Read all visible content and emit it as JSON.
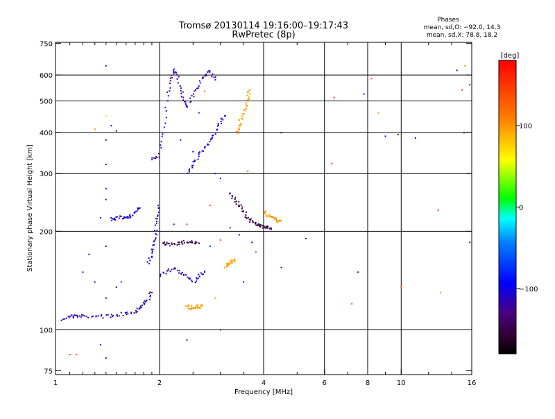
{
  "chart_data": {
    "type": "scatter",
    "title": "Tromsø 20130114 19:16:00–19:17:43",
    "subtitle": "RwPretec (8p)",
    "info": {
      "heading": "Phases",
      "line1": "mean, sd,O: −92.0, 14.3",
      "line2": "mean, sd,X: 78.8, 18.2"
    },
    "xlabel": "Frequency [MHz]",
    "ylabel": "Stationary phase Virtual Height [km]",
    "x_scale": "log2",
    "y_scale": "log",
    "xlim": [
      1,
      16
    ],
    "ylim": [
      73,
      755
    ],
    "x_ticks": [
      {
        "value": 1,
        "label": "1"
      },
      {
        "value": 2,
        "label": "2"
      },
      {
        "value": 4,
        "label": "4"
      },
      {
        "value": 6,
        "label": "6"
      },
      {
        "value": 8,
        "label": "8"
      },
      {
        "value": 10,
        "label": "10"
      },
      {
        "value": 16,
        "label": "16"
      }
    ],
    "x_minor_ticks": [
      1.1,
      1.2,
      1.3,
      1.4,
      1.5,
      1.6,
      1.7,
      1.8,
      1.9,
      2.5,
      3,
      3.5,
      5,
      7,
      9,
      12,
      14
    ],
    "x_gridlines": [
      2,
      4,
      6,
      8,
      10
    ],
    "y_ticks": [
      {
        "value": 75,
        "label": "75"
      },
      {
        "value": 100,
        "label": "100"
      },
      {
        "value": 200,
        "label": "200"
      },
      {
        "value": 300,
        "label": "300"
      },
      {
        "value": 400,
        "label": "400"
      },
      {
        "value": 500,
        "label": "500"
      },
      {
        "value": 600,
        "label": "600"
      },
      {
        "value": 750,
        "label": "750"
      }
    ],
    "y_gridlines": [
      100,
      200,
      300,
      400,
      500,
      600
    ],
    "colorbar": {
      "label": "[deg]",
      "range": [
        -180,
        180
      ],
      "ticks": [
        {
          "value": 100,
          "label": "100"
        },
        {
          "value": 0,
          "label": "0"
        },
        {
          "value": -100,
          "label": "−100"
        }
      ]
    },
    "traces": [
      {
        "name": "",
        "phase": -115,
        "points": [
          [
            1.05,
            108
          ],
          [
            1.1,
            110
          ],
          [
            1.15,
            110
          ],
          [
            1.2,
            110
          ],
          [
            1.3,
            110
          ],
          [
            1.4,
            110
          ],
          [
            1.5,
            111
          ],
          [
            1.6,
            112
          ],
          [
            1.7,
            114
          ],
          [
            1.75,
            117
          ],
          [
            1.8,
            120
          ],
          [
            1.85,
            124
          ],
          [
            1.9,
            130
          ]
        ]
      },
      {
        "name": "",
        "phase": -105,
        "points": [
          [
            1.45,
            218
          ],
          [
            1.5,
            219
          ],
          [
            1.55,
            220
          ],
          [
            1.6,
            221
          ],
          [
            1.65,
            223
          ],
          [
            1.7,
            228
          ],
          [
            1.75,
            235
          ]
        ]
      },
      {
        "name": "",
        "phase": -110,
        "points": [
          [
            1.85,
            160
          ],
          [
            1.9,
            170
          ],
          [
            1.92,
            185
          ],
          [
            1.95,
            200
          ],
          [
            1.97,
            220
          ],
          [
            1.98,
            240
          ]
        ]
      },
      {
        "name": "",
        "phase": -115,
        "points": [
          [
            1.9,
            330
          ],
          [
            2.0,
            340
          ],
          [
            2.05,
            400
          ],
          [
            2.1,
            500
          ],
          [
            2.15,
            580
          ],
          [
            2.2,
            620
          ],
          [
            2.25,
            600
          ],
          [
            2.3,
            540
          ],
          [
            2.35,
            500
          ],
          [
            2.4,
            480
          ],
          [
            2.5,
            520
          ],
          [
            2.6,
            560
          ],
          [
            2.7,
            600
          ],
          [
            2.8,
            620
          ],
          [
            2.9,
            580
          ]
        ]
      },
      {
        "name": "",
        "phase": -100,
        "points": [
          [
            2.4,
            300
          ],
          [
            2.5,
            320
          ],
          [
            2.6,
            340
          ],
          [
            2.7,
            360
          ],
          [
            2.8,
            380
          ],
          [
            2.9,
            400
          ],
          [
            3.0,
            430
          ],
          [
            3.1,
            450
          ]
        ]
      },
      {
        "name": "",
        "phase": -110,
        "points": [
          [
            2.0,
            145
          ],
          [
            2.1,
            150
          ],
          [
            2.2,
            155
          ],
          [
            2.3,
            150
          ],
          [
            2.4,
            145
          ],
          [
            2.5,
            140
          ],
          [
            2.6,
            145
          ],
          [
            2.7,
            150
          ]
        ]
      },
      {
        "name": "",
        "phase": -150,
        "points": [
          [
            2.05,
            185
          ],
          [
            2.1,
            183
          ],
          [
            2.2,
            182
          ],
          [
            2.3,
            184
          ],
          [
            2.4,
            186
          ],
          [
            2.5,
            185
          ],
          [
            2.6,
            184
          ]
        ]
      },
      {
        "name": "",
        "phase": 95,
        "points": [
          [
            2.4,
            118
          ],
          [
            2.45,
            117
          ],
          [
            2.5,
            117
          ],
          [
            2.55,
            117
          ],
          [
            2.6,
            118
          ],
          [
            2.65,
            118
          ]
        ]
      },
      {
        "name": "",
        "phase": 95,
        "points": [
          [
            3.1,
            155
          ],
          [
            3.15,
            158
          ],
          [
            3.2,
            160
          ],
          [
            3.25,
            162
          ],
          [
            3.3,
            164
          ]
        ]
      },
      {
        "name": "",
        "phase": 100,
        "points": [
          [
            3.35,
            400
          ],
          [
            3.4,
            420
          ],
          [
            3.45,
            440
          ],
          [
            3.5,
            460
          ],
          [
            3.55,
            480
          ],
          [
            3.6,
            510
          ],
          [
            3.65,
            540
          ]
        ]
      },
      {
        "name": "",
        "phase": -150,
        "points": [
          [
            3.2,
            260
          ],
          [
            3.3,
            250
          ],
          [
            3.4,
            240
          ],
          [
            3.5,
            230
          ],
          [
            3.6,
            220
          ],
          [
            3.7,
            215
          ],
          [
            3.8,
            210
          ],
          [
            3.9,
            208
          ],
          [
            4.0,
            206
          ],
          [
            4.1,
            205
          ],
          [
            4.2,
            205
          ]
        ]
      },
      {
        "name": "",
        "phase": 95,
        "points": [
          [
            4.0,
            230
          ],
          [
            4.1,
            225
          ],
          [
            4.2,
            220
          ],
          [
            4.3,
            218
          ],
          [
            4.4,
            215
          ],
          [
            4.5,
            215
          ]
        ]
      }
    ],
    "scattered_points": [
      [
        1.4,
        640,
        -80
      ],
      [
        1.4,
        450,
        70
      ],
      [
        1.4,
        380,
        -150
      ],
      [
        1.4,
        320,
        -100
      ],
      [
        1.4,
        270,
        -110
      ],
      [
        1.4,
        250,
        -140
      ],
      [
        1.3,
        410,
        100
      ],
      [
        1.45,
        420,
        -100
      ],
      [
        1.5,
        405,
        -110
      ],
      [
        1.35,
        220,
        -120
      ],
      [
        1.25,
        170,
        -80
      ],
      [
        1.2,
        150,
        -110
      ],
      [
        1.3,
        140,
        -110
      ],
      [
        1.4,
        125,
        -120
      ],
      [
        1.5,
        135,
        -150
      ],
      [
        1.55,
        140,
        -80
      ],
      [
        1.4,
        180,
        -110
      ],
      [
        1.35,
        90,
        -100
      ],
      [
        1.4,
        82,
        -110
      ],
      [
        1.1,
        84,
        150
      ],
      [
        1.15,
        84,
        140
      ],
      [
        2.4,
        93,
        -120
      ],
      [
        3.0,
        100,
        -140
      ],
      [
        3.6,
        305,
        130
      ],
      [
        3.7,
        185,
        -110
      ],
      [
        3.8,
        173,
        140
      ],
      [
        3.5,
        140,
        -110
      ],
      [
        4.5,
        400,
        -110
      ],
      [
        4.5,
        155,
        -110
      ],
      [
        5.3,
        190,
        -110
      ],
      [
        6.4,
        512,
        150
      ],
      [
        6.3,
        322,
        150
      ],
      [
        7.2,
        120,
        140
      ],
      [
        7.5,
        150,
        -120
      ],
      [
        7.8,
        525,
        -80
      ],
      [
        8.2,
        585,
        140
      ],
      [
        8.6,
        460,
        100
      ],
      [
        9.0,
        390,
        -110
      ],
      [
        9.8,
        395,
        -110
      ],
      [
        10.0,
        135,
        140
      ],
      [
        11.0,
        385,
        -110
      ],
      [
        12.8,
        232,
        150
      ],
      [
        13.0,
        130,
        100
      ],
      [
        14.5,
        620,
        -120
      ],
      [
        15.0,
        540,
        140
      ],
      [
        15.3,
        640,
        100
      ],
      [
        15.2,
        400,
        -110
      ],
      [
        15.8,
        560,
        -80
      ],
      [
        15.8,
        185,
        -110
      ],
      [
        2.8,
        180,
        -80
      ],
      [
        2.9,
        125,
        100
      ],
      [
        2.4,
        210,
        150
      ],
      [
        2.2,
        210,
        -110
      ],
      [
        2.3,
        380,
        -100
      ],
      [
        2.6,
        460,
        -80
      ],
      [
        2.7,
        535,
        110
      ],
      [
        2.5,
        350,
        -100
      ],
      [
        3.0,
        290,
        -110
      ],
      [
        2.9,
        300,
        -100
      ],
      [
        3.2,
        205,
        -80
      ],
      [
        2.8,
        240,
        140
      ],
      [
        3.0,
        188,
        140
      ],
      [
        3.4,
        195,
        -110
      ]
    ]
  }
}
